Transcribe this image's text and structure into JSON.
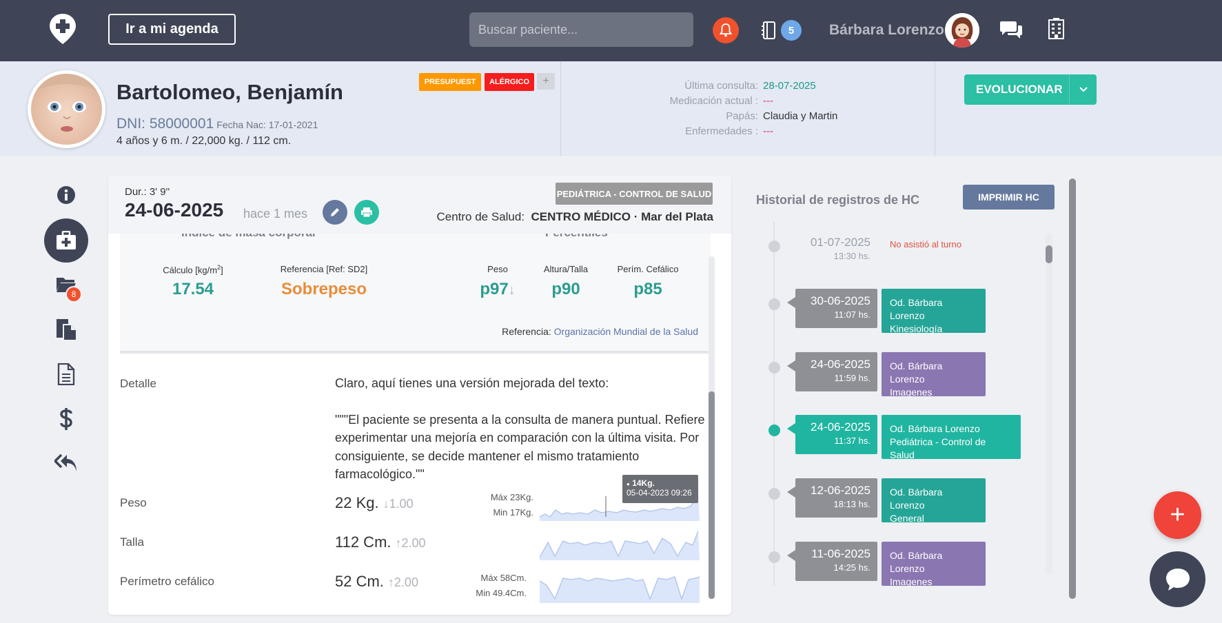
{
  "topbar": {
    "agenda_label": "Ir a mi agenda",
    "search_placeholder": "Buscar paciente...",
    "notes_count": "5",
    "user_name": "Bárbara Lorenzo",
    "colors": {
      "bg": "#3f4557",
      "bell": "#f0522e",
      "badge": "#6fa8e8"
    }
  },
  "patient": {
    "name": "Bartolomeo, Benjamín",
    "dni": "DNI: 58000001",
    "fecha_nac": "Fecha Nac: 17-01-2021",
    "age_line": "4 años y 6 m. / 22,000 kg. / 112 cm.",
    "tags": [
      {
        "label": "PRESUPUEST",
        "color": "#ff9800"
      },
      {
        "label": "ALÉRGICO",
        "color": "#f51d1d"
      }
    ],
    "tag_add": "+",
    "info": [
      {
        "label": "Última consulta:",
        "value": "28-07-2025",
        "color": "#1f9a8a"
      },
      {
        "label": "Medicación actual :",
        "value": "---",
        "color": "#e0305f"
      },
      {
        "label": "Papás:",
        "value": "Claudia y Martin",
        "color": "#333333"
      },
      {
        "label": "Enfermedades :",
        "value": "---",
        "color": "#e0305f"
      }
    ],
    "evolucionar_label": "EVOLUCIONAR"
  },
  "rail": {
    "items": [
      "info-icon",
      "medical-kit-icon",
      "folder-icon",
      "documents-copy-icon",
      "document-icon",
      "dollar-icon",
      "reply-all-icon"
    ],
    "folder_badge": "8"
  },
  "consulta": {
    "dur": "Dur.: 3' 9''",
    "date": "24-06-2025",
    "hace": "hace 1 mes",
    "type": "PEDIÁTRICA - CONTROL DE SALUD",
    "centro_label": "Centro de Salud:",
    "centro_value": "CENTRO MÉDICO · Mar del Plata",
    "imc_heading": "Índice de masa corporal",
    "percentiles_heading": "Percentiles",
    "calculo_label": "Cálculo [kg/m",
    "calculo_sup": "2",
    "calculo_close": "]",
    "calculo_value": "17.54",
    "referencia_label": "Referencia [Ref: SD2]",
    "referencia_value": "Sobrepeso",
    "peso_pct_label": "Peso",
    "peso_pct_value": "p97",
    "altura_pct_label": "Altura/Talla",
    "altura_pct_value": "p90",
    "perim_pct_label": "Perím. Cefálico",
    "perim_pct_value": "p85",
    "ref_prefix": "Referencia:",
    "ref_org": "Organización Mundial de la Salud",
    "detalle_label": "Detalle",
    "detalle_p1": "Claro, aquí tienes una versión mejorada del texto:",
    "detalle_p2": "\"\"\"El paciente se presenta a la consulta de manera puntual. Refiere experimentar una mejoría en comparación con la última visita. Por consiguiente, se decide mantener el mismo tratamiento farmacológico.\"\"",
    "peso_label": "Peso",
    "peso_value": "22 Kg.",
    "peso_delta": "1.00",
    "peso_max": "Máx 23Kg.",
    "peso_min": "Min 17Kg.",
    "talla_label": "Talla",
    "talla_value": "112 Cm.",
    "talla_delta": "2.00",
    "perim_label": "Perímetro cefálico",
    "perim_value": "52 Cm.",
    "perim_delta": "2.00",
    "perim_max": "Máx 58Cm.",
    "perim_min": "Min 49.4Cm.",
    "tooltip_value": "14Kg.",
    "tooltip_date": "05-04-2023 09:26",
    "colors": {
      "teal": "#2a9d8f",
      "orange": "#e88d3a"
    }
  },
  "historial": {
    "title": "Historial de registros de HC",
    "print_label": "IMPRIMIR HC",
    "first": {
      "date": "01-07-2025",
      "hour": "13:30 hs.",
      "status": "No asistió al turno"
    },
    "entries": [
      {
        "date": "30-06-2025",
        "hour": "11:07 hs.",
        "doctor": "Od. Bárbara Lorenzo",
        "type": "Kinesiología",
        "color": "#24a597"
      },
      {
        "date": "24-06-2025",
        "hour": "11:59 hs.",
        "doctor": "Od. Bárbara Lorenzo",
        "type": "Imagenes",
        "color": "#8a76b1"
      },
      {
        "date": "24-06-2025",
        "hour": "11:37 hs.",
        "doctor": "Od. Bárbara Lorenzo",
        "type": "Pediátrica - Control de Salud",
        "color": "#20b5a0",
        "active": true
      },
      {
        "date": "12-06-2025",
        "hour": "18:13 hs.",
        "doctor": "Od. Bárbara Lorenzo",
        "type": "General",
        "color": "#24a597"
      },
      {
        "date": "11-06-2025",
        "hour": "14:25 hs.",
        "doctor": "Od. Bárbara Lorenzo",
        "type": "Imagenes",
        "color": "#8a76b1"
      }
    ]
  },
  "fab": {
    "add_label": "+"
  }
}
